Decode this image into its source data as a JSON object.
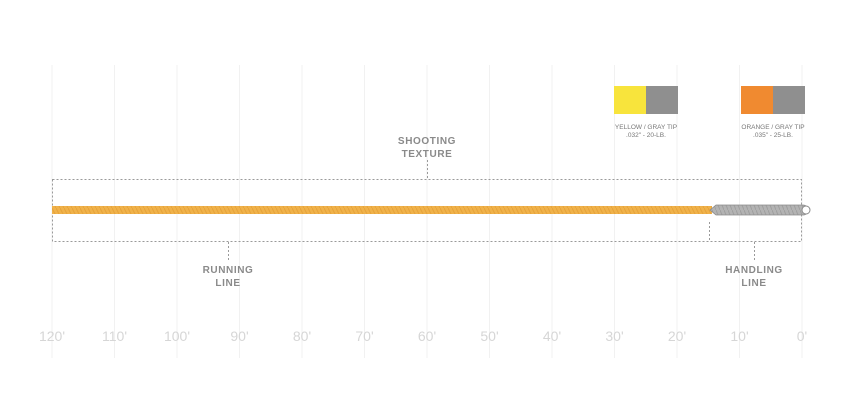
{
  "callouts": [
    {
      "lines": [
        "SHOOTING",
        "TEXTURE"
      ]
    },
    {
      "lines": [
        "RUNNING",
        "LINE"
      ]
    },
    {
      "lines": [
        "HANDLING",
        "LINE"
      ]
    }
  ],
  "swatches": [
    {
      "name": "YELLOW / GRAY TIP",
      "spec": ".032\" - 20-LB."
    },
    {
      "name": "ORANGE / GRAY TIP",
      "spec": ".035\" - 25-LB."
    }
  ],
  "scale": [
    "120'",
    "110'",
    "100'",
    "90'",
    "80'",
    "70'",
    "60'",
    "50'",
    "40'",
    "30'",
    "20'",
    "10'",
    "0'"
  ]
}
